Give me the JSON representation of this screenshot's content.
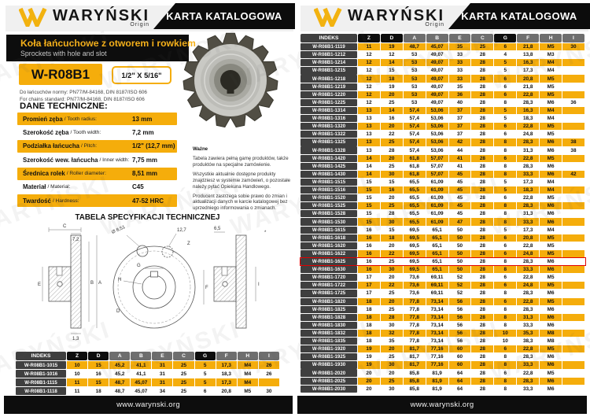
{
  "brand": {
    "name": "WARYŃSKI",
    "origin": "Origin",
    "banner": "KARTA KATALOGOWA",
    "watermark": "WARYŃSKI",
    "website": "www.warynski.org"
  },
  "colors": {
    "yellow": "#F5AD0B",
    "black_bar": "#0D0D0D",
    "header_gray": "#6E6E6E",
    "index_dark": "#3F3F3F",
    "highlight_red": "#E10000"
  },
  "left": {
    "title_pl": "Koła łańcuchowe z otworem i rowkiem",
    "title_en": "Sprockets with hole and slot",
    "product_code": "W-R08B1",
    "size_badge": "1/2\" X 5/16\"",
    "norm_pl": "Do łańcuchów normy: PN77/M-84168, DIN 8187/ISO 606",
    "norm_en": "For chains standard: PN77/M-84168, DIN 8187/ISO 606",
    "tech_heading": "DANE TECHNICZNE:",
    "spec_rows": [
      {
        "label": "Promień zęba",
        "sub": "/ Tooth radius:",
        "value": "13 mm",
        "yellow": true
      },
      {
        "label": "Szerokość zęba",
        "sub": "/ Tooth width:",
        "value": "7,2 mm",
        "yellow": false
      },
      {
        "label": "Podziałka łańcucha",
        "sub": "/ Pitch:",
        "value": "1/2\" (12,7 mm)",
        "yellow": true
      },
      {
        "label": "Szerokość wew. łańcucha",
        "sub": "/ Inner width:",
        "value": "7,75 mm",
        "yellow": false
      },
      {
        "label": "Średnica rolek",
        "sub": "/ Roller diameter:",
        "value": "8,51 mm",
        "yellow": true
      },
      {
        "label": "Materiał",
        "sub": "/ Material:",
        "value": "C45",
        "yellow": false
      },
      {
        "label": "Twardość",
        "sub": "/ Hardness:",
        "value": "47-52 HRC",
        "yellow": true
      }
    ],
    "note": {
      "title": "Ważne",
      "p1": "Tabela zawiera pełną gamę produktów, także produktów na specjalne zamówienie.",
      "p2": "Wszystkie aktualnie dostępne produkty znajdziesz w systemie zamówień, o pozostałe należy pytać Opiekuna Handlowego.",
      "p3": "Producent zastrzega sobie prawo do zmian i aktualizacji danych w karcie katalogowej bez uprzedniego informowania o zmianach."
    },
    "diagram_title": "TABELA SPECYFIKACJI TECHNICZNEJ",
    "diagram_labels": {
      "c": "C",
      "w72": "7,2",
      "e": "E",
      "b": "B",
      "a": "A",
      "t13": "1,3",
      "roller": "Ø 8,51",
      "pitch": "12,7",
      "z": "Z",
      "g": "G",
      "h": "H",
      "d": "D",
      "f": "F",
      "w65": "6,5",
      "star": "*",
      "i": "I"
    }
  },
  "small_table": {
    "headers": [
      {
        "label": "INDEKS",
        "style": "idx"
      },
      {
        "label": "Z",
        "style": "dark"
      },
      {
        "label": "D",
        "style": "dark"
      },
      {
        "label": "A",
        "style": "gray"
      },
      {
        "label": "B",
        "style": "gray"
      },
      {
        "label": "E",
        "style": "gray"
      },
      {
        "label": "C",
        "style": "gray"
      },
      {
        "label": "G",
        "style": "dark"
      },
      {
        "label": "F",
        "style": "gray"
      },
      {
        "label": "H",
        "style": "gray"
      },
      {
        "label": "I",
        "style": "gray"
      }
    ],
    "rows": [
      [
        "W-R08B1-1015",
        "10",
        "15",
        "45,2",
        "41,1",
        "31",
        "25",
        "5",
        "17,3",
        "M4",
        "26"
      ],
      [
        "W-R08B1-1016",
        "10",
        "16",
        "45,2",
        "41,1",
        "31",
        "25",
        "5",
        "18,3",
        "M4",
        "26"
      ],
      [
        "W-R08B1-1115",
        "11",
        "15",
        "48,7",
        "45,07",
        "31",
        "25",
        "5",
        "17,3",
        "M4",
        ""
      ],
      [
        "W-R08B1-1118",
        "11",
        "18",
        "48,7",
        "45,07",
        "34",
        "25",
        "6",
        "20,8",
        "M5",
        "30"
      ]
    ]
  },
  "right_table": {
    "highlight": "W-R08B1-1625",
    "headers": [
      {
        "label": "INDEKS",
        "style": "idx"
      },
      {
        "label": "Z",
        "style": "dark"
      },
      {
        "label": "D",
        "style": "dark"
      },
      {
        "label": "A",
        "style": "gray"
      },
      {
        "label": "B",
        "style": "gray"
      },
      {
        "label": "E",
        "style": "gray"
      },
      {
        "label": "C",
        "style": "gray"
      },
      {
        "label": "G",
        "style": "dark"
      },
      {
        "label": "F",
        "style": "gray"
      },
      {
        "label": "H",
        "style": "gray"
      },
      {
        "label": "I",
        "style": "gray"
      }
    ],
    "rows": [
      [
        "W-R08B1-1119",
        "11",
        "19",
        "48,7",
        "45,07",
        "35",
        "25",
        "6",
        "21,8",
        "M5",
        "30"
      ],
      [
        "W-R08B1-1212",
        "12",
        "12",
        "53",
        "49,07",
        "33",
        "28",
        "4",
        "13,8",
        "M3",
        ""
      ],
      [
        "W-R08B1-1214",
        "12",
        "14",
        "53",
        "49,07",
        "33",
        "28",
        "5",
        "16,3",
        "M4",
        ""
      ],
      [
        "W-R08B1-1215",
        "12",
        "15",
        "53",
        "49,07",
        "33",
        "28",
        "5",
        "17,3",
        "M4",
        ""
      ],
      [
        "W-R08B1-1218",
        "12",
        "18",
        "53",
        "49,07",
        "33",
        "28",
        "6",
        "20,8",
        "M5",
        ""
      ],
      [
        "W-R08B1-1219",
        "12",
        "19",
        "53",
        "49,07",
        "35",
        "28",
        "6",
        "21,8",
        "M5",
        ""
      ],
      [
        "W-R08B1-1220",
        "12",
        "20",
        "53",
        "49,07",
        "36",
        "28",
        "6",
        "22,8",
        "M5",
        ""
      ],
      [
        "W-R08B1-1225",
        "12",
        "25",
        "53",
        "49,07",
        "40",
        "28",
        "8",
        "28,3",
        "M6",
        "36"
      ],
      [
        "W-R08B1-1314",
        "13",
        "14",
        "57,4",
        "53,06",
        "37",
        "28",
        "5",
        "16,3",
        "M4",
        ""
      ],
      [
        "W-R08B1-1316",
        "13",
        "16",
        "57,4",
        "53,06",
        "37",
        "28",
        "5",
        "18,3",
        "M4",
        ""
      ],
      [
        "W-R08B1-1320",
        "13",
        "20",
        "57,4",
        "53,06",
        "37",
        "28",
        "6",
        "22,8",
        "M5",
        ""
      ],
      [
        "W-R08B1-1322",
        "13",
        "22",
        "57,4",
        "53,06",
        "37",
        "28",
        "6",
        "24,8",
        "M5",
        ""
      ],
      [
        "W-R08B1-1325",
        "13",
        "25",
        "57,4",
        "53,06",
        "42",
        "28",
        "8",
        "28,3",
        "M6",
        "38"
      ],
      [
        "W-R08B1-1328",
        "13",
        "28",
        "57,4",
        "53,06",
        "44",
        "28",
        "8",
        "31,3",
        "M6",
        "38"
      ],
      [
        "W-R08B1-1420",
        "14",
        "20",
        "61,8",
        "57,07",
        "41",
        "28",
        "6",
        "22,8",
        "M5",
        ""
      ],
      [
        "W-R08B1-1425",
        "14",
        "25",
        "61,8",
        "57,07",
        "41",
        "28",
        "8",
        "28,3",
        "M6",
        ""
      ],
      [
        "W-R08B1-1430",
        "14",
        "30",
        "61,8",
        "57,07",
        "45",
        "28",
        "8",
        "33,3",
        "M6",
        "42"
      ],
      [
        "W-R08B1-1515",
        "15",
        "15",
        "65,5",
        "61,09",
        "45",
        "28",
        "5",
        "17,3",
        "M4",
        ""
      ],
      [
        "W-R08B1-1516",
        "15",
        "16",
        "65,5",
        "61,09",
        "45",
        "28",
        "5",
        "18,3",
        "M4",
        ""
      ],
      [
        "W-R08B1-1520",
        "15",
        "20",
        "65,5",
        "61,09",
        "45",
        "28",
        "6",
        "22,8",
        "M5",
        ""
      ],
      [
        "W-R08B1-1525",
        "15",
        "25",
        "65,5",
        "61,09",
        "45",
        "28",
        "8",
        "28,3",
        "M6",
        ""
      ],
      [
        "W-R08B1-1528",
        "15",
        "28",
        "65,5",
        "61,09",
        "45",
        "28",
        "8",
        "31,3",
        "M6",
        ""
      ],
      [
        "W-R08B1-1530",
        "15",
        "30",
        "65,5",
        "61,09",
        "47",
        "28",
        "8",
        "33,3",
        "M6",
        ""
      ],
      [
        "W-R08B1-1615",
        "16",
        "15",
        "69,5",
        "65,1",
        "50",
        "28",
        "5",
        "17,3",
        "M4",
        ""
      ],
      [
        "W-R08B1-1618",
        "16",
        "18",
        "69,5",
        "65,1",
        "50",
        "28",
        "6",
        "20,8",
        "M5",
        ""
      ],
      [
        "W-R08B1-1620",
        "16",
        "20",
        "69,5",
        "65,1",
        "50",
        "28",
        "6",
        "22,8",
        "M5",
        ""
      ],
      [
        "W-R08B1-1622",
        "16",
        "22",
        "69,5",
        "65,1",
        "50",
        "28",
        "6",
        "24,8",
        "M5",
        ""
      ],
      [
        "W-R08B1-1625",
        "16",
        "25",
        "69,5",
        "65,1",
        "50",
        "28",
        "8",
        "28,3",
        "M6",
        ""
      ],
      [
        "W-R08B1-1630",
        "16",
        "30",
        "69,5",
        "65,1",
        "50",
        "28",
        "8",
        "33,3",
        "M6",
        ""
      ],
      [
        "W-R08B1-1720",
        "17",
        "20",
        "73,6",
        "69,11",
        "52",
        "28",
        "6",
        "22,8",
        "M5",
        ""
      ],
      [
        "W-R08B1-1722",
        "17",
        "22",
        "73,6",
        "69,11",
        "52",
        "28",
        "6",
        "24,8",
        "M5",
        ""
      ],
      [
        "W-R08B1-1725",
        "17",
        "25",
        "73,6",
        "69,11",
        "52",
        "28",
        "8",
        "28,3",
        "M6",
        ""
      ],
      [
        "W-R08B1-1820",
        "18",
        "20",
        "77,8",
        "73,14",
        "56",
        "28",
        "6",
        "22,8",
        "M5",
        ""
      ],
      [
        "W-R08B1-1825",
        "18",
        "25",
        "77,8",
        "73,14",
        "56",
        "28",
        "8",
        "28,3",
        "M6",
        ""
      ],
      [
        "W-R08B1-1828",
        "18",
        "28",
        "77,8",
        "73,14",
        "56",
        "28",
        "8",
        "31,3",
        "M6",
        ""
      ],
      [
        "W-R08B1-1830",
        "18",
        "30",
        "77,8",
        "73,14",
        "56",
        "28",
        "8",
        "33,3",
        "M6",
        ""
      ],
      [
        "W-R08B1-1832",
        "18",
        "32",
        "77,8",
        "73,14",
        "56",
        "28",
        "10",
        "35,3",
        "M8",
        ""
      ],
      [
        "W-R08B1-1835",
        "18",
        "35",
        "77,8",
        "73,14",
        "56",
        "28",
        "10",
        "38,3",
        "M8",
        ""
      ],
      [
        "W-R08B1-1920",
        "19",
        "20",
        "81,7",
        "77,16",
        "60",
        "28",
        "6",
        "22,8",
        "M5",
        ""
      ],
      [
        "W-R08B1-1925",
        "19",
        "25",
        "81,7",
        "77,16",
        "60",
        "28",
        "8",
        "28,3",
        "M6",
        ""
      ],
      [
        "W-R08B1-1930",
        "19",
        "30",
        "81,7",
        "77,16",
        "60",
        "28",
        "8",
        "33,3",
        "M6",
        ""
      ],
      [
        "W-R08B1-2020",
        "20",
        "20",
        "85,8",
        "81,9",
        "64",
        "28",
        "6",
        "22,8",
        "M5",
        ""
      ],
      [
        "W-R08B1-2025",
        "20",
        "25",
        "85,8",
        "81,9",
        "64",
        "28",
        "8",
        "28,3",
        "M6",
        ""
      ],
      [
        "W-R08B1-2030",
        "20",
        "30",
        "85,8",
        "81,9",
        "64",
        "28",
        "8",
        "33,3",
        "M6",
        ""
      ]
    ]
  }
}
